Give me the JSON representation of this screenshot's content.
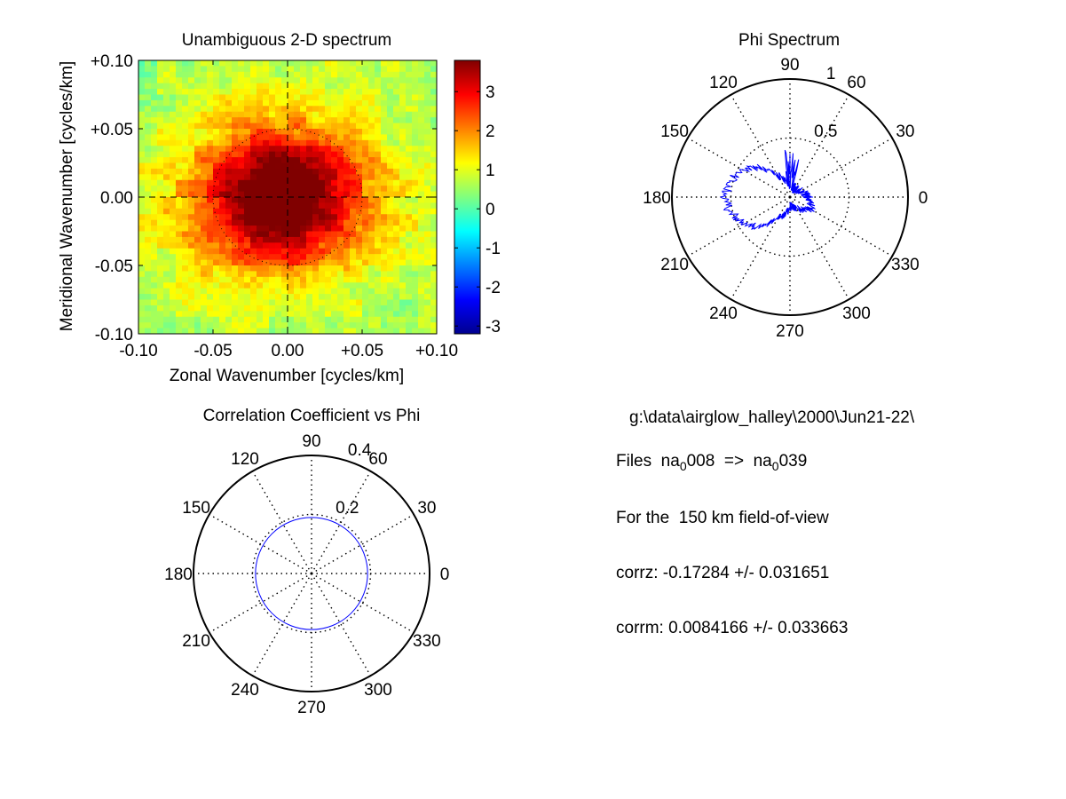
{
  "chart_data": [
    {
      "type": "heatmap",
      "title": "Unambiguous 2-D spectrum",
      "xlabel": "Zonal Wavenumber [cycles/km]",
      "ylabel": "Meridional Wavenumber [cycles/km]",
      "xlim": [
        -0.1,
        0.1
      ],
      "ylim": [
        -0.1,
        0.1
      ],
      "xticks": [
        "-0.10",
        "-0.05",
        "0.00",
        "+0.05",
        "+0.10"
      ],
      "yticks": [
        "+0.10",
        "+0.05",
        "0.00",
        "-0.05",
        "-0.10"
      ],
      "colorbar": {
        "colormap": "jet",
        "range": [
          -3.2,
          3.8
        ],
        "ticks": [
          "3",
          "2",
          "1",
          "0",
          "-1",
          "-2",
          "-3"
        ]
      },
      "description_peak": {
        "x": -0.005,
        "y": 0.0,
        "value": 3.7
      },
      "crosshair_lines": "dashed at x=0 and y=0",
      "reference_circle_radius": 0.05
    },
    {
      "type": "polar",
      "title": "Phi Spectrum",
      "rlim": [
        0,
        1
      ],
      "rticks": [
        "0.5",
        "1"
      ],
      "angle_ticks": [
        "0",
        "30",
        "60",
        "90",
        "120",
        "150",
        "180",
        "210",
        "240",
        "270",
        "300",
        "330"
      ],
      "series_color": "#0000ff",
      "radius_profile": {
        "angles_deg": [
          0,
          30,
          60,
          90,
          120,
          135,
          150,
          165,
          180,
          195,
          210,
          225,
          240,
          270,
          300,
          330
        ],
        "r": [
          0.15,
          0.1,
          0.08,
          0.1,
          0.2,
          0.35,
          0.45,
          0.52,
          0.55,
          0.52,
          0.45,
          0.35,
          0.2,
          0.08,
          0.1,
          0.2
        ]
      }
    },
    {
      "type": "polar",
      "title": "Correlation Coefficient vs Phi",
      "rlim": [
        0,
        0.4
      ],
      "rticks": [
        "0.2",
        "0.4"
      ],
      "angle_ticks": [
        "0",
        "30",
        "60",
        "90",
        "120",
        "150",
        "180",
        "210",
        "240",
        "270",
        "300",
        "330"
      ],
      "series_color": "#0000ff",
      "constant_radius": 0.19
    }
  ],
  "info": {
    "path": "g:\\data\\airglow_halley\\2000\\Jun21-22\\",
    "files_prefix": "Files  na",
    "files_sub1": "0",
    "files_mid": "008  =>  na",
    "files_sub2": "0",
    "files_end": "039",
    "fov": "For the  150 km field-of-view",
    "corrz": "corrz: -0.17284 +/- 0.031651",
    "corrm": "corrm: 0.0084166 +/- 0.033663"
  }
}
